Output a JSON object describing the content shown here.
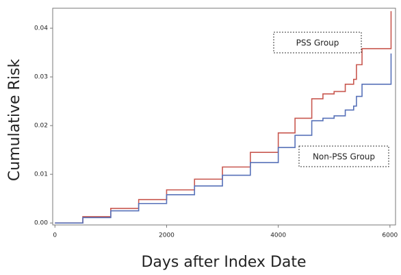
{
  "chart_data": {
    "type": "line",
    "step": "post",
    "xlabel": "Days after Index Date",
    "ylabel": "Cumulative Risk",
    "x": [
      0,
      500,
      1000,
      1500,
      2000,
      2500,
      3000,
      3500,
      4000,
      4300,
      4600,
      4800,
      5000,
      5200,
      5350,
      5400,
      5500,
      6000,
      6020
    ],
    "series": [
      {
        "name": "PSS Group",
        "color": "#c8574f",
        "values": [
          0,
          0.0013,
          0.003,
          0.0048,
          0.0068,
          0.009,
          0.0115,
          0.0145,
          0.0185,
          0.0215,
          0.0255,
          0.0265,
          0.027,
          0.0285,
          0.0295,
          0.0325,
          0.0358,
          0.0358,
          0.0435
        ]
      },
      {
        "name": "Non-PSS Group",
        "color": "#5670b8",
        "values": [
          0,
          0.0011,
          0.0025,
          0.004,
          0.0058,
          0.0076,
          0.0098,
          0.0124,
          0.0155,
          0.018,
          0.021,
          0.0215,
          0.022,
          0.0232,
          0.024,
          0.026,
          0.0285,
          0.0285,
          0.0348
        ]
      }
    ],
    "xlim": [
      -40,
      6100
    ],
    "xticks": [
      0,
      2000,
      4000,
      6000
    ],
    "ylim": [
      -0.0004,
      0.0441
    ],
    "yticks": [
      {
        "value": 0,
        "label": "0.00"
      },
      {
        "value": 0.01,
        "label": "0.01"
      },
      {
        "value": 0.02,
        "label": "0.02"
      },
      {
        "value": 0.03,
        "label": "0.03"
      },
      {
        "value": 0.04,
        "label": "0.04"
      }
    ],
    "grid": false
  }
}
